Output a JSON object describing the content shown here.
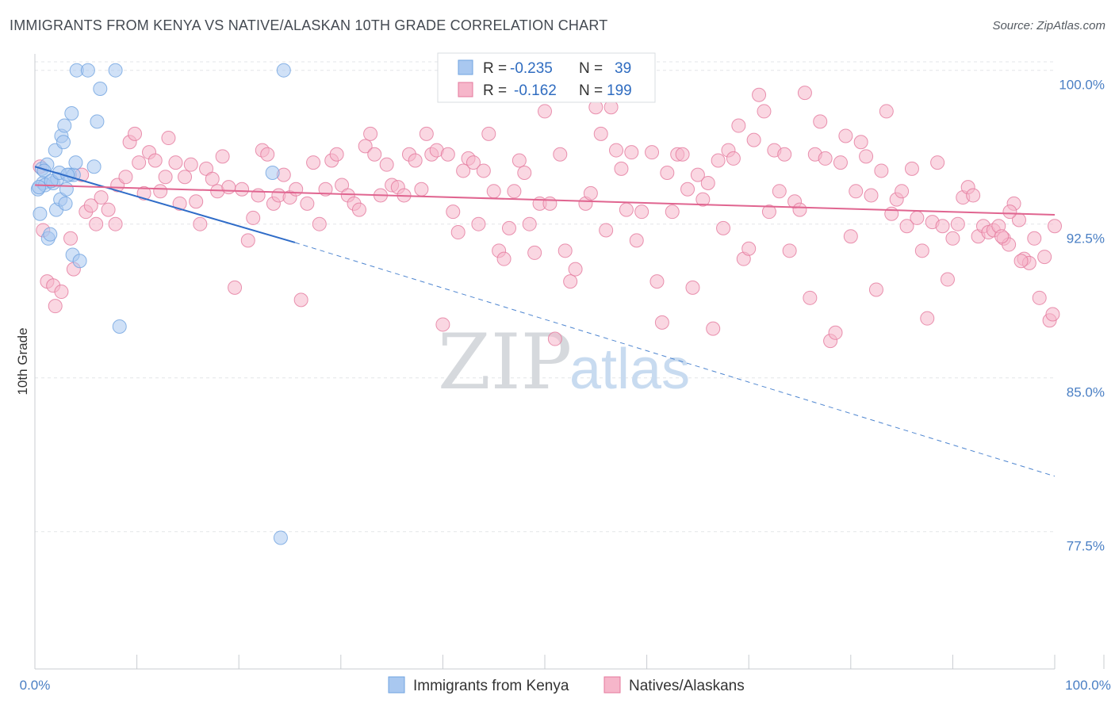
{
  "header": {
    "title": "IMMIGRANTS FROM KENYA VS NATIVE/ALASKAN 10TH GRADE CORRELATION CHART",
    "source": "Source: ZipAtlas.com"
  },
  "legend": {
    "rows": [
      {
        "r_label": "R =",
        "r_value": "-0.235",
        "n_label": "N =",
        "n_value": "39",
        "color": "#a9c8f0"
      },
      {
        "r_label": "R =",
        "r_value": "-0.162",
        "n_label": "N =",
        "n_value": "199",
        "color": "#f6b6ca"
      }
    ]
  },
  "bottom_legend": {
    "items": [
      {
        "label": "Immigrants from Kenya",
        "color": "#a9c8f0"
      },
      {
        "label": "Natives/Alaskans",
        "color": "#f6b6ca"
      }
    ]
  },
  "watermark": {
    "zip": "ZIP",
    "atlas": "atlas"
  },
  "chart_data": {
    "type": "scatter",
    "title": "IMMIGRANTS FROM KENYA VS NATIVE/ALASKAN 10TH GRADE CORRELATION CHART",
    "xlabel": "",
    "ylabel": "10th Grade",
    "xlim": [
      0,
      100
    ],
    "ylim": [
      70.8,
      100.8
    ],
    "x_tick_labels": [
      "0.0%",
      "100.0%"
    ],
    "y_ticks": [
      100.0,
      92.5,
      85.0,
      77.5
    ],
    "y_tick_labels": [
      "100.0%",
      "92.5%",
      "85.0%",
      "77.5%"
    ],
    "grid": true,
    "series": [
      {
        "name": "Immigrants from Kenya",
        "color": "#6fa3e0",
        "fill": "#a9c8f0",
        "R": -0.235,
        "N": 39,
        "trend": {
          "x0": 0,
          "y0": 95.3,
          "x1": 25.5,
          "y1": 91.6,
          "dashed_to_x": 100,
          "dashed_to_y": 80.2
        },
        "points": [
          [
            0.3,
            94.2
          ],
          [
            0.5,
            93.0
          ],
          [
            0.7,
            95.2
          ],
          [
            0.8,
            94.5
          ],
          [
            1.0,
            94.4
          ],
          [
            1.2,
            95.4
          ],
          [
            1.3,
            91.8
          ],
          [
            1.5,
            92.0
          ],
          [
            1.8,
            94.5
          ],
          [
            2.0,
            96.1
          ],
          [
            2.1,
            93.2
          ],
          [
            2.2,
            94.7
          ],
          [
            2.5,
            93.7
          ],
          [
            2.6,
            96.8
          ],
          [
            2.8,
            96.5
          ],
          [
            2.9,
            97.3
          ],
          [
            3.0,
            93.5
          ],
          [
            3.1,
            94.2
          ],
          [
            3.4,
            94.9
          ],
          [
            3.6,
            97.9
          ],
          [
            3.7,
            91.0
          ],
          [
            3.8,
            94.9
          ],
          [
            4.0,
            95.5
          ],
          [
            4.4,
            90.7
          ],
          [
            4.1,
            100.0
          ],
          [
            5.2,
            100.0
          ],
          [
            5.8,
            95.3
          ],
          [
            6.1,
            97.5
          ],
          [
            6.4,
            99.1
          ],
          [
            7.9,
            100.0
          ],
          [
            8.3,
            87.5
          ],
          [
            23.3,
            95.0
          ],
          [
            24.4,
            100.0
          ],
          [
            24.1,
            77.2
          ],
          [
            0.4,
            94.3
          ],
          [
            0.9,
            95.1
          ],
          [
            1.6,
            94.6
          ],
          [
            2.4,
            95.0
          ],
          [
            3.2,
            94.9
          ]
        ]
      },
      {
        "name": "Natives/Alaskans",
        "color": "#e4789c",
        "fill": "#f6b6ca",
        "R": -0.162,
        "N": 199,
        "trend": {
          "x0": 0,
          "y0": 94.4,
          "x1": 100,
          "y1": 92.95
        },
        "points": [
          [
            0.5,
            95.3
          ],
          [
            0.8,
            92.2
          ],
          [
            1.2,
            89.7
          ],
          [
            1.8,
            89.5
          ],
          [
            2.0,
            88.5
          ],
          [
            2.6,
            89.2
          ],
          [
            3.5,
            91.8
          ],
          [
            3.8,
            90.3
          ],
          [
            4.6,
            94.9
          ],
          [
            5.0,
            93.1
          ],
          [
            5.5,
            93.4
          ],
          [
            6.0,
            92.5
          ],
          [
            6.5,
            93.8
          ],
          [
            7.2,
            93.2
          ],
          [
            7.9,
            92.5
          ],
          [
            8.1,
            94.4
          ],
          [
            8.9,
            94.8
          ],
          [
            9.3,
            96.5
          ],
          [
            9.8,
            96.9
          ],
          [
            10.2,
            95.5
          ],
          [
            10.7,
            94.0
          ],
          [
            11.2,
            96.0
          ],
          [
            11.8,
            95.6
          ],
          [
            12.3,
            94.1
          ],
          [
            12.8,
            94.8
          ],
          [
            13.1,
            96.7
          ],
          [
            13.8,
            95.5
          ],
          [
            14.2,
            93.5
          ],
          [
            14.7,
            94.8
          ],
          [
            15.3,
            95.4
          ],
          [
            15.8,
            93.6
          ],
          [
            16.2,
            92.5
          ],
          [
            16.8,
            95.2
          ],
          [
            17.4,
            94.7
          ],
          [
            17.9,
            94.1
          ],
          [
            18.4,
            95.8
          ],
          [
            19.0,
            94.3
          ],
          [
            19.6,
            89.4
          ],
          [
            20.3,
            94.2
          ],
          [
            20.9,
            91.7
          ],
          [
            21.4,
            92.8
          ],
          [
            21.9,
            93.9
          ],
          [
            22.3,
            96.1
          ],
          [
            22.8,
            95.9
          ],
          [
            23.4,
            93.5
          ],
          [
            23.9,
            93.9
          ],
          [
            24.4,
            94.9
          ],
          [
            25.0,
            93.8
          ],
          [
            25.6,
            94.2
          ],
          [
            26.1,
            88.8
          ],
          [
            26.7,
            93.5
          ],
          [
            27.3,
            95.5
          ],
          [
            27.9,
            92.5
          ],
          [
            28.5,
            94.2
          ],
          [
            29.1,
            95.6
          ],
          [
            29.6,
            95.9
          ],
          [
            30.1,
            94.4
          ],
          [
            30.7,
            93.9
          ],
          [
            31.3,
            93.5
          ],
          [
            31.8,
            93.2
          ],
          [
            32.4,
            96.3
          ],
          [
            32.9,
            96.9
          ],
          [
            33.3,
            95.9
          ],
          [
            33.9,
            93.9
          ],
          [
            34.5,
            95.4
          ],
          [
            35.0,
            94.4
          ],
          [
            35.6,
            94.3
          ],
          [
            36.2,
            93.9
          ],
          [
            36.7,
            95.9
          ],
          [
            37.3,
            95.6
          ],
          [
            37.9,
            94.2
          ],
          [
            38.4,
            96.9
          ],
          [
            38.9,
            95.9
          ],
          [
            39.4,
            96.1
          ],
          [
            40.0,
            87.6
          ],
          [
            40.5,
            95.9
          ],
          [
            41.0,
            93.1
          ],
          [
            41.5,
            92.1
          ],
          [
            42.0,
            95.1
          ],
          [
            42.5,
            95.7
          ],
          [
            43.0,
            95.5
          ],
          [
            43.5,
            92.5
          ],
          [
            44.0,
            95.1
          ],
          [
            44.5,
            96.9
          ],
          [
            45.0,
            94.1
          ],
          [
            45.5,
            91.2
          ],
          [
            46.0,
            90.8
          ],
          [
            46.5,
            92.3
          ],
          [
            47.0,
            94.1
          ],
          [
            47.5,
            95.6
          ],
          [
            48.0,
            95.0
          ],
          [
            48.5,
            92.5
          ],
          [
            49.0,
            91.1
          ],
          [
            49.5,
            93.5
          ],
          [
            50.0,
            98.0
          ],
          [
            50.5,
            93.5
          ],
          [
            51.0,
            86.9
          ],
          [
            51.5,
            95.9
          ],
          [
            52.0,
            91.2
          ],
          [
            52.5,
            89.7
          ],
          [
            53.0,
            90.3
          ],
          [
            53.5,
            99.0
          ],
          [
            54.0,
            93.5
          ],
          [
            54.5,
            94.0
          ],
          [
            55.0,
            98.2
          ],
          [
            55.5,
            96.9
          ],
          [
            56.0,
            92.2
          ],
          [
            56.5,
            98.2
          ],
          [
            57.0,
            96.1
          ],
          [
            57.5,
            95.2
          ],
          [
            58.0,
            93.2
          ],
          [
            58.5,
            96.0
          ],
          [
            59.0,
            91.7
          ],
          [
            59.5,
            93.1
          ],
          [
            60.0,
            98.9
          ],
          [
            60.5,
            96.0
          ],
          [
            61.0,
            89.7
          ],
          [
            61.5,
            87.7
          ],
          [
            62.0,
            95.0
          ],
          [
            62.5,
            93.1
          ],
          [
            63.0,
            95.9
          ],
          [
            63.5,
            95.9
          ],
          [
            64.0,
            94.2
          ],
          [
            64.5,
            89.4
          ],
          [
            65.0,
            94.9
          ],
          [
            65.5,
            93.7
          ],
          [
            66.0,
            94.5
          ],
          [
            66.5,
            87.4
          ],
          [
            67.0,
            95.6
          ],
          [
            67.5,
            92.3
          ],
          [
            68.0,
            96.1
          ],
          [
            68.5,
            95.7
          ],
          [
            69.0,
            97.3
          ],
          [
            69.5,
            90.8
          ],
          [
            70.0,
            91.3
          ],
          [
            70.5,
            96.6
          ],
          [
            71.0,
            98.8
          ],
          [
            71.5,
            98.0
          ],
          [
            72.0,
            93.1
          ],
          [
            72.5,
            96.1
          ],
          [
            73.0,
            94.1
          ],
          [
            73.5,
            95.9
          ],
          [
            74.0,
            91.2
          ],
          [
            74.5,
            93.6
          ],
          [
            75.0,
            93.2
          ],
          [
            75.5,
            98.9
          ],
          [
            76.0,
            88.9
          ],
          [
            76.5,
            95.9
          ],
          [
            77.0,
            97.5
          ],
          [
            77.5,
            95.7
          ],
          [
            78.0,
            86.8
          ],
          [
            78.5,
            87.2
          ],
          [
            79.0,
            95.5
          ],
          [
            79.5,
            96.8
          ],
          [
            80.0,
            91.9
          ],
          [
            80.5,
            94.1
          ],
          [
            81.0,
            96.5
          ],
          [
            81.5,
            95.8
          ],
          [
            82.0,
            93.9
          ],
          [
            82.5,
            89.3
          ],
          [
            83.0,
            95.1
          ],
          [
            83.5,
            98.0
          ],
          [
            84.0,
            93.0
          ],
          [
            84.5,
            93.7
          ],
          [
            85.0,
            94.1
          ],
          [
            85.5,
            92.4
          ],
          [
            86.0,
            95.2
          ],
          [
            86.5,
            92.8
          ],
          [
            87.0,
            91.2
          ],
          [
            87.5,
            87.9
          ],
          [
            88.0,
            92.6
          ],
          [
            88.5,
            95.5
          ],
          [
            89.0,
            92.4
          ],
          [
            89.5,
            89.8
          ],
          [
            90.0,
            91.8
          ],
          [
            90.5,
            92.5
          ],
          [
            91.0,
            93.8
          ],
          [
            91.5,
            94.3
          ],
          [
            92.0,
            93.9
          ],
          [
            92.5,
            91.9
          ],
          [
            93.0,
            92.4
          ],
          [
            93.5,
            92.1
          ],
          [
            94.0,
            92.2
          ],
          [
            94.5,
            92.4
          ],
          [
            95.0,
            91.8
          ],
          [
            95.5,
            91.5
          ],
          [
            96.0,
            93.5
          ],
          [
            96.5,
            92.7
          ],
          [
            97.0,
            90.8
          ],
          [
            97.5,
            90.6
          ],
          [
            98.0,
            91.8
          ],
          [
            98.5,
            88.9
          ],
          [
            99.0,
            90.9
          ],
          [
            99.5,
            87.8
          ],
          [
            100.0,
            92.4
          ],
          [
            99.8,
            88.1
          ],
          [
            94.8,
            91.9
          ],
          [
            95.6,
            93.1
          ],
          [
            96.7,
            90.7
          ]
        ]
      }
    ]
  }
}
